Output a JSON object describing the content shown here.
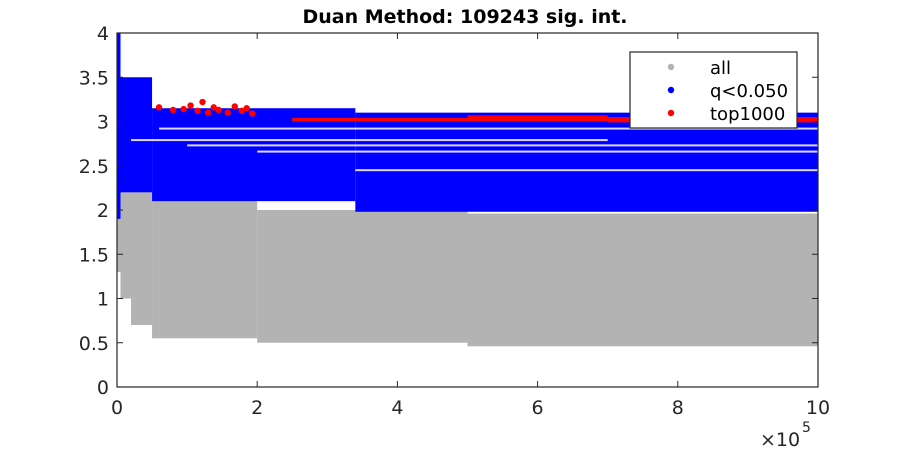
{
  "chart_data": {
    "type": "scatter",
    "title": "Duan Method: 109243 sig. int.",
    "xlabel": "",
    "ylabel": "",
    "xlim": [
      0,
      1000000
    ],
    "ylim": [
      0,
      4
    ],
    "x_ticks": [
      0,
      200000,
      400000,
      600000,
      800000,
      1000000
    ],
    "x_tick_labels": [
      "0",
      "2",
      "4",
      "6",
      "8",
      "10"
    ],
    "x_multiplier": "×10",
    "x_multiplier_exp": "5",
    "y_ticks": [
      0,
      0.5,
      1,
      1.5,
      2,
      2.5,
      3,
      3.5,
      4
    ],
    "y_tick_labels": [
      "0",
      "0.5",
      "1",
      "1.5",
      "2",
      "2.5",
      "3",
      "3.5",
      "4"
    ],
    "grid": false,
    "legend_position": "top-right",
    "series": [
      {
        "name": "all",
        "color": "#b3b3b3",
        "bands": [
          {
            "x": [
              0,
              5000
            ],
            "y": [
              1.3,
              4.0
            ]
          },
          {
            "x": [
              5000,
              20000
            ],
            "y": [
              1.0,
              3.3
            ]
          },
          {
            "x": [
              20000,
              50000
            ],
            "y": [
              0.7,
              2.5
            ]
          },
          {
            "x": [
              50000,
              200000
            ],
            "y": [
              0.55,
              2.1
            ]
          },
          {
            "x": [
              200000,
              500000
            ],
            "y": [
              0.5,
              2.0
            ]
          },
          {
            "x": [
              500000,
              1000000
            ],
            "y": [
              0.46,
              1.96
            ]
          }
        ]
      },
      {
        "name": "q<0.050",
        "color": "#0000ff",
        "bands": [
          {
            "x": [
              0,
              5000
            ],
            "y": [
              1.9,
              4.0
            ]
          },
          {
            "x": [
              5000,
              50000
            ],
            "y": [
              2.2,
              3.5
            ]
          },
          {
            "x": [
              50000,
              340000
            ],
            "y": [
              2.1,
              3.15
            ]
          },
          {
            "x": [
              340000,
              1000000
            ],
            "y": [
              1.98,
              3.1
            ]
          }
        ]
      },
      {
        "name": "top1000",
        "color": "#ff0000",
        "points": [
          [
            60000,
            3.16
          ],
          [
            80000,
            3.13
          ],
          [
            95000,
            3.14
          ],
          [
            105000,
            3.18
          ],
          [
            115000,
            3.12
          ],
          [
            122000,
            3.22
          ],
          [
            130000,
            3.1
          ],
          [
            138000,
            3.16
          ],
          [
            145000,
            3.13
          ],
          [
            158000,
            3.1
          ],
          [
            168000,
            3.17
          ],
          [
            178000,
            3.12
          ],
          [
            185000,
            3.15
          ],
          [
            193000,
            3.09
          ]
        ],
        "segments": [
          {
            "x": [
              250000,
              500000
            ],
            "y": [
              3.0,
              3.04
            ]
          },
          {
            "x": [
              500000,
              700000
            ],
            "y": [
              3.0,
              3.07
            ]
          },
          {
            "x": [
              700000,
              1000000
            ],
            "y": [
              2.99,
              3.05
            ]
          }
        ]
      }
    ]
  }
}
